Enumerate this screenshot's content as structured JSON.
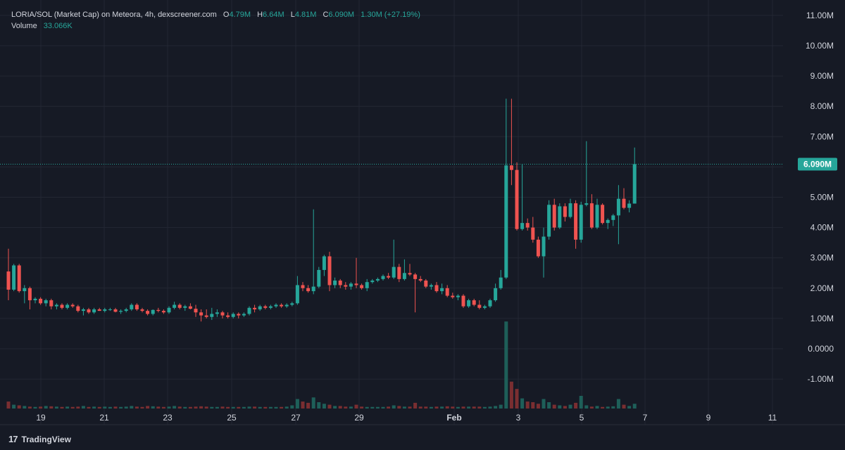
{
  "header": {
    "pair_title": "LORIA/SOL (Market Cap) on Meteora, 4h, dexscreener.com",
    "open_label": "O",
    "open_value": "4.79M",
    "high_label": "H",
    "high_value": "6.64M",
    "low_label": "L",
    "low_value": "4.81M",
    "close_label": "C",
    "close_value": "6.090M",
    "change": "1.30M (+27.19%)",
    "volume_label": "Volume",
    "volume_value": "33.066K"
  },
  "footer": {
    "brand": "TradingView",
    "brand_mark": "17"
  },
  "colors": {
    "up": "#26a69a",
    "down": "#ef5350",
    "background": "#161a25",
    "grid": "#232733",
    "text": "#d1d4dc"
  },
  "chart_data": {
    "type": "candlestick",
    "interval": "4h",
    "x_tick_labels": [
      "19",
      "21",
      "23",
      "25",
      "27",
      "29",
      "Feb",
      "3",
      "5",
      "7",
      "9",
      "11"
    ],
    "y_tick_labels": [
      "11.00M",
      "10.00M",
      "9.00M",
      "8.00M",
      "7.00M",
      "6.00M",
      "5.00M",
      "4.00M",
      "3.00M",
      "2.00M",
      "1.00M",
      "0.0000",
      "-1.00M"
    ],
    "y_range": [
      -1.8,
      11.3
    ],
    "y_unit": "M",
    "last_price_label": "6.090M",
    "last_price": 6.09,
    "grid": true,
    "candles": [
      [
        2.55,
        3.3,
        1.6,
        1.95
      ],
      [
        1.95,
        2.8,
        1.9,
        2.75
      ],
      [
        2.75,
        2.8,
        1.85,
        1.9
      ],
      [
        1.9,
        2.1,
        1.5,
        2.0
      ],
      [
        2.0,
        2.05,
        1.3,
        1.6
      ],
      [
        1.6,
        1.7,
        1.5,
        1.65
      ],
      [
        1.65,
        1.7,
        1.45,
        1.5
      ],
      [
        1.5,
        1.65,
        1.4,
        1.6
      ],
      [
        1.6,
        1.65,
        1.3,
        1.4
      ],
      [
        1.4,
        1.5,
        1.3,
        1.45
      ],
      [
        1.45,
        1.5,
        1.3,
        1.35
      ],
      [
        1.35,
        1.5,
        1.3,
        1.45
      ],
      [
        1.45,
        1.5,
        1.35,
        1.4
      ],
      [
        1.4,
        1.45,
        1.2,
        1.25
      ],
      [
        1.25,
        1.35,
        1.1,
        1.3
      ],
      [
        1.3,
        1.35,
        1.15,
        1.2
      ],
      [
        1.2,
        1.35,
        1.15,
        1.3
      ],
      [
        1.3,
        1.35,
        1.25,
        1.25
      ],
      [
        1.25,
        1.35,
        1.2,
        1.3
      ],
      [
        1.3,
        1.35,
        1.25,
        1.3
      ],
      [
        1.3,
        1.35,
        1.2,
        1.22
      ],
      [
        1.22,
        1.3,
        1.15,
        1.25
      ],
      [
        1.25,
        1.35,
        1.2,
        1.3
      ],
      [
        1.3,
        1.5,
        1.25,
        1.45
      ],
      [
        1.45,
        1.5,
        1.25,
        1.3
      ],
      [
        1.3,
        1.35,
        1.2,
        1.25
      ],
      [
        1.25,
        1.3,
        1.1,
        1.15
      ],
      [
        1.15,
        1.3,
        1.1,
        1.28
      ],
      [
        1.28,
        1.35,
        1.2,
        1.25
      ],
      [
        1.25,
        1.3,
        1.15,
        1.2
      ],
      [
        1.2,
        1.4,
        1.15,
        1.35
      ],
      [
        1.35,
        1.55,
        1.3,
        1.45
      ],
      [
        1.45,
        1.5,
        1.3,
        1.35
      ],
      [
        1.35,
        1.45,
        1.25,
        1.4
      ],
      [
        1.4,
        1.5,
        1.3,
        1.32
      ],
      [
        1.32,
        1.45,
        1.05,
        1.2
      ],
      [
        1.2,
        1.3,
        0.9,
        1.1
      ],
      [
        1.1,
        1.3,
        1.0,
        1.05
      ],
      [
        1.05,
        1.35,
        0.95,
        1.15
      ],
      [
        1.15,
        1.3,
        1.05,
        1.2
      ],
      [
        1.2,
        1.25,
        1.0,
        1.1
      ],
      [
        1.1,
        1.2,
        1.0,
        1.05
      ],
      [
        1.05,
        1.2,
        1.0,
        1.15
      ],
      [
        1.15,
        1.2,
        1.0,
        1.1
      ],
      [
        1.1,
        1.2,
        1.05,
        1.15
      ],
      [
        1.15,
        1.4,
        1.1,
        1.35
      ],
      [
        1.35,
        1.45,
        1.2,
        1.3
      ],
      [
        1.3,
        1.45,
        1.25,
        1.4
      ],
      [
        1.4,
        1.45,
        1.3,
        1.35
      ],
      [
        1.35,
        1.45,
        1.3,
        1.4
      ],
      [
        1.4,
        1.5,
        1.35,
        1.45
      ],
      [
        1.45,
        1.5,
        1.35,
        1.4
      ],
      [
        1.4,
        1.5,
        1.35,
        1.45
      ],
      [
        1.45,
        1.55,
        1.4,
        1.5
      ],
      [
        1.5,
        2.4,
        1.45,
        2.1
      ],
      [
        2.1,
        2.2,
        1.9,
        2.0
      ],
      [
        2.0,
        2.1,
        1.85,
        1.9
      ],
      [
        1.9,
        4.6,
        1.8,
        2.05
      ],
      [
        2.05,
        2.7,
        2.0,
        2.6
      ],
      [
        2.6,
        3.1,
        2.4,
        3.05
      ],
      [
        3.05,
        3.2,
        1.9,
        2.1
      ],
      [
        2.1,
        2.35,
        2.0,
        2.25
      ],
      [
        2.25,
        2.3,
        2.0,
        2.1
      ],
      [
        2.1,
        2.2,
        1.95,
        2.05
      ],
      [
        2.05,
        2.2,
        1.95,
        2.15
      ],
      [
        2.15,
        3.0,
        2.0,
        2.1
      ],
      [
        2.1,
        2.15,
        1.95,
        2.0
      ],
      [
        2.0,
        2.3,
        1.9,
        2.2
      ],
      [
        2.2,
        2.3,
        2.15,
        2.25
      ],
      [
        2.25,
        2.35,
        2.2,
        2.3
      ],
      [
        2.3,
        2.45,
        2.25,
        2.4
      ],
      [
        2.4,
        2.5,
        2.3,
        2.35
      ],
      [
        2.35,
        3.6,
        2.3,
        2.7
      ],
      [
        2.7,
        2.8,
        2.2,
        2.3
      ],
      [
        2.3,
        2.95,
        2.25,
        2.5
      ],
      [
        2.5,
        2.8,
        2.4,
        2.45
      ],
      [
        2.45,
        2.5,
        1.2,
        2.3
      ],
      [
        2.3,
        2.4,
        2.2,
        2.25
      ],
      [
        2.25,
        2.3,
        2.0,
        2.05
      ],
      [
        2.05,
        2.15,
        1.95,
        2.1
      ],
      [
        2.1,
        2.2,
        1.85,
        1.9
      ],
      [
        1.9,
        2.15,
        1.8,
        2.0
      ],
      [
        2.0,
        2.1,
        1.7,
        1.75
      ],
      [
        1.75,
        1.85,
        1.65,
        1.7
      ],
      [
        1.7,
        1.8,
        1.6,
        1.75
      ],
      [
        1.75,
        1.8,
        1.35,
        1.4
      ],
      [
        1.4,
        1.65,
        1.35,
        1.6
      ],
      [
        1.6,
        1.65,
        1.4,
        1.45
      ],
      [
        1.45,
        1.6,
        1.3,
        1.35
      ],
      [
        1.35,
        1.45,
        1.3,
        1.4
      ],
      [
        1.4,
        1.65,
        1.35,
        1.6
      ],
      [
        1.6,
        2.15,
        1.55,
        2.0
      ],
      [
        2.0,
        2.6,
        1.95,
        2.35
      ],
      [
        2.35,
        8.25,
        2.3,
        6.05
      ],
      [
        6.05,
        8.25,
        5.4,
        5.9
      ],
      [
        5.9,
        6.15,
        3.9,
        3.95
      ],
      [
        3.95,
        6.1,
        3.9,
        4.15
      ],
      [
        4.15,
        4.3,
        3.9,
        4.0
      ],
      [
        4.0,
        4.35,
        3.5,
        3.6
      ],
      [
        3.6,
        3.7,
        3.0,
        3.05
      ],
      [
        3.05,
        4.0,
        2.35,
        3.7
      ],
      [
        3.7,
        4.9,
        3.6,
        4.75
      ],
      [
        4.75,
        4.95,
        3.9,
        4.0
      ],
      [
        4.0,
        4.8,
        3.95,
        4.7
      ],
      [
        4.7,
        4.8,
        4.2,
        4.35
      ],
      [
        4.35,
        4.95,
        4.3,
        4.8
      ],
      [
        4.8,
        4.9,
        3.3,
        3.6
      ],
      [
        3.6,
        4.85,
        3.5,
        4.75
      ],
      [
        4.75,
        6.85,
        4.7,
        4.8
      ],
      [
        4.8,
        5.1,
        3.95,
        4.0
      ],
      [
        4.0,
        4.95,
        3.95,
        4.75
      ],
      [
        4.75,
        4.8,
        4.1,
        4.15
      ],
      [
        4.15,
        4.3,
        3.95,
        4.25
      ],
      [
        4.25,
        4.45,
        4.05,
        4.4
      ],
      [
        4.4,
        5.4,
        3.45,
        4.95
      ],
      [
        4.95,
        5.3,
        4.6,
        4.65
      ],
      [
        4.65,
        4.9,
        4.5,
        4.79
      ],
      [
        4.79,
        6.64,
        4.81,
        6.09
      ]
    ],
    "volumes": [
      0.22,
      0.12,
      0.1,
      0.08,
      0.06,
      0.05,
      0.06,
      0.08,
      0.07,
      0.06,
      0.05,
      0.06,
      0.05,
      0.06,
      0.08,
      0.05,
      0.06,
      0.05,
      0.06,
      0.05,
      0.06,
      0.05,
      0.06,
      0.08,
      0.06,
      0.05,
      0.08,
      0.07,
      0.06,
      0.05,
      0.06,
      0.08,
      0.06,
      0.05,
      0.05,
      0.06,
      0.07,
      0.06,
      0.05,
      0.05,
      0.06,
      0.05,
      0.05,
      0.05,
      0.05,
      0.06,
      0.06,
      0.05,
      0.05,
      0.05,
      0.05,
      0.05,
      0.06,
      0.1,
      0.3,
      0.22,
      0.18,
      0.35,
      0.2,
      0.15,
      0.12,
      0.08,
      0.08,
      0.06,
      0.06,
      0.12,
      0.06,
      0.05,
      0.05,
      0.05,
      0.05,
      0.06,
      0.1,
      0.08,
      0.06,
      0.06,
      0.18,
      0.06,
      0.06,
      0.05,
      0.06,
      0.06,
      0.07,
      0.06,
      0.05,
      0.06,
      0.06,
      0.06,
      0.06,
      0.05,
      0.06,
      0.08,
      0.12,
      2.75,
      0.85,
      0.62,
      0.32,
      0.22,
      0.2,
      0.15,
      0.3,
      0.2,
      0.12,
      0.1,
      0.08,
      0.12,
      0.18,
      0.4,
      0.1,
      0.06,
      0.08,
      0.05,
      0.06,
      0.07,
      0.3,
      0.12,
      0.08,
      0.15
    ]
  }
}
